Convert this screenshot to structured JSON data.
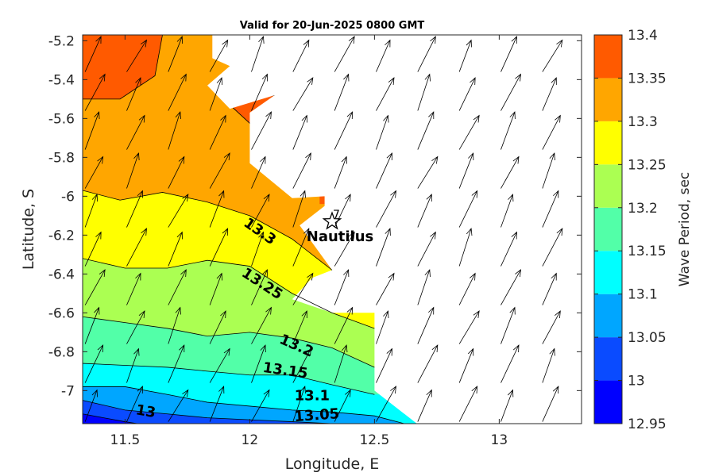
{
  "chart_data": {
    "type": "contour",
    "title": "Valid for 20-Jun-2025 0800 GMT",
    "xlabel": "Longitude, E",
    "ylabel": "Latitude, S",
    "xlim": [
      11.33,
      13.33
    ],
    "ylim": [
      -7.17,
      -5.17
    ],
    "xticks": [
      11.5,
      12,
      12.5,
      13
    ],
    "xtick_labels": [
      "11.5",
      "12",
      "12.5",
      "13"
    ],
    "yticks": [
      -5.2,
      -5.4,
      -5.6,
      -5.8,
      -6,
      -6.2,
      -6.4,
      -6.6,
      -6.8,
      -7
    ],
    "ytick_labels": [
      "-5.2",
      "-5.4",
      "-5.6",
      "-5.8",
      "-6",
      "-6.2",
      "-6.4",
      "-6.6",
      "-6.8",
      "-7"
    ],
    "colorbar": {
      "label": "Wave Period, sec",
      "levels": [
        12.95,
        13,
        13.05,
        13.1,
        13.15,
        13.2,
        13.25,
        13.3,
        13.35,
        13.4
      ],
      "level_labels": [
        "12.95",
        "13",
        "13.05",
        "13.1",
        "13.15",
        "13.2",
        "13.25",
        "13.3",
        "13.35",
        "13.4"
      ],
      "colors": [
        "#0000ff",
        "#0a4bff",
        "#00a6ff",
        "#00ffff",
        "#52ffa8",
        "#abff52",
        "#ffff00",
        "#ffa600",
        "#ff5a00"
      ]
    },
    "contours": [
      {
        "level": 13.35,
        "points": [
          [
            11.33,
            -5.5
          ],
          [
            11.48,
            -5.5
          ],
          [
            11.62,
            -5.38
          ],
          [
            11.65,
            -5.17
          ]
        ]
      },
      {
        "level": 13.3,
        "points": [
          [
            11.33,
            -5.97
          ],
          [
            11.48,
            -6.02
          ],
          [
            11.65,
            -5.98
          ],
          [
            11.83,
            -6.03
          ],
          [
            12.0,
            -6.1
          ],
          [
            12.17,
            -6.22
          ],
          [
            12.33,
            -6.38
          ]
        ]
      },
      {
        "level": 13.25,
        "points": [
          [
            11.33,
            -6.32
          ],
          [
            11.5,
            -6.37
          ],
          [
            11.67,
            -6.37
          ],
          [
            11.83,
            -6.33
          ],
          [
            12.0,
            -6.36
          ],
          [
            12.17,
            -6.5
          ],
          [
            12.33,
            -6.6
          ],
          [
            12.5,
            -6.68
          ]
        ]
      },
      {
        "level": 13.2,
        "points": [
          [
            11.33,
            -6.62
          ],
          [
            11.5,
            -6.65
          ],
          [
            11.67,
            -6.68
          ],
          [
            11.83,
            -6.72
          ],
          [
            12.0,
            -6.7
          ],
          [
            12.17,
            -6.73
          ],
          [
            12.33,
            -6.78
          ],
          [
            12.5,
            -6.88
          ]
        ]
      },
      {
        "level": 13.15,
        "points": [
          [
            11.33,
            -6.86
          ],
          [
            11.5,
            -6.87
          ],
          [
            11.67,
            -6.88
          ],
          [
            11.83,
            -6.9
          ],
          [
            12.0,
            -6.92
          ],
          [
            12.17,
            -6.92
          ],
          [
            12.33,
            -6.97
          ],
          [
            12.5,
            -7.02
          ]
        ]
      },
      {
        "level": 13.1,
        "points": [
          [
            11.33,
            -6.98
          ],
          [
            11.5,
            -6.98
          ],
          [
            11.67,
            -7.02
          ],
          [
            11.83,
            -7.06
          ],
          [
            12.0,
            -7.08
          ],
          [
            12.17,
            -7.1
          ],
          [
            12.33,
            -7.11
          ],
          [
            12.5,
            -7.13
          ],
          [
            12.62,
            -7.17
          ]
        ]
      },
      {
        "level": 13.05,
        "points": [
          [
            11.33,
            -7.05
          ],
          [
            11.5,
            -7.1
          ],
          [
            11.67,
            -7.12
          ],
          [
            11.83,
            -7.14
          ],
          [
            12.0,
            -7.15
          ],
          [
            12.17,
            -7.16
          ],
          [
            12.33,
            -7.17
          ]
        ]
      },
      {
        "level": 13.0,
        "points": [
          [
            11.33,
            -7.12
          ],
          [
            11.5,
            -7.16
          ],
          [
            11.55,
            -7.17
          ]
        ]
      }
    ],
    "contour_labels": [
      {
        "text": "13.3",
        "lon": 12.03,
        "lat": -6.2,
        "angle": 35
      },
      {
        "text": "13.25",
        "lon": 12.04,
        "lat": -6.47,
        "angle": 33
      },
      {
        "text": "13.2",
        "lon": 12.18,
        "lat": -6.79,
        "angle": 24
      },
      {
        "text": "13.15",
        "lon": 12.14,
        "lat": -6.92,
        "angle": 8
      },
      {
        "text": "13.1",
        "lon": 12.25,
        "lat": -7.05,
        "angle": 0
      },
      {
        "text": "13.05",
        "lon": 12.27,
        "lat": -7.15,
        "angle": -4
      },
      {
        "text": "13",
        "lon": 11.58,
        "lat": -7.13,
        "angle": 10
      }
    ],
    "site": {
      "name": "Nautilus",
      "number": "7",
      "lon": 12.33,
      "lat": -6.13
    },
    "land_boundary": [
      [
        11.33,
        -5.17
      ],
      [
        11.85,
        -5.17
      ],
      [
        11.85,
        -5.29
      ],
      [
        11.92,
        -5.33
      ],
      [
        11.83,
        -5.43
      ],
      [
        11.92,
        -5.55
      ],
      [
        12.1,
        -5.48
      ],
      [
        12.0,
        -5.57
      ],
      [
        12.0,
        -5.83
      ],
      [
        12.17,
        -6.01
      ],
      [
        12.3,
        -6.0
      ],
      [
        12.3,
        -6.05
      ],
      [
        12.2,
        -6.15
      ],
      [
        12.33,
        -6.38
      ],
      [
        12.25,
        -6.42
      ],
      [
        12.17,
        -6.53
      ],
      [
        12.33,
        -6.6
      ],
      [
        12.5,
        -6.6
      ],
      [
        12.5,
        -7.0
      ],
      [
        12.67,
        -7.17
      ],
      [
        11.33,
        -7.17
      ]
    ],
    "wave_direction_arrows": "northeast-pointing vectors on a regular grid, drawn over both sea and land"
  }
}
